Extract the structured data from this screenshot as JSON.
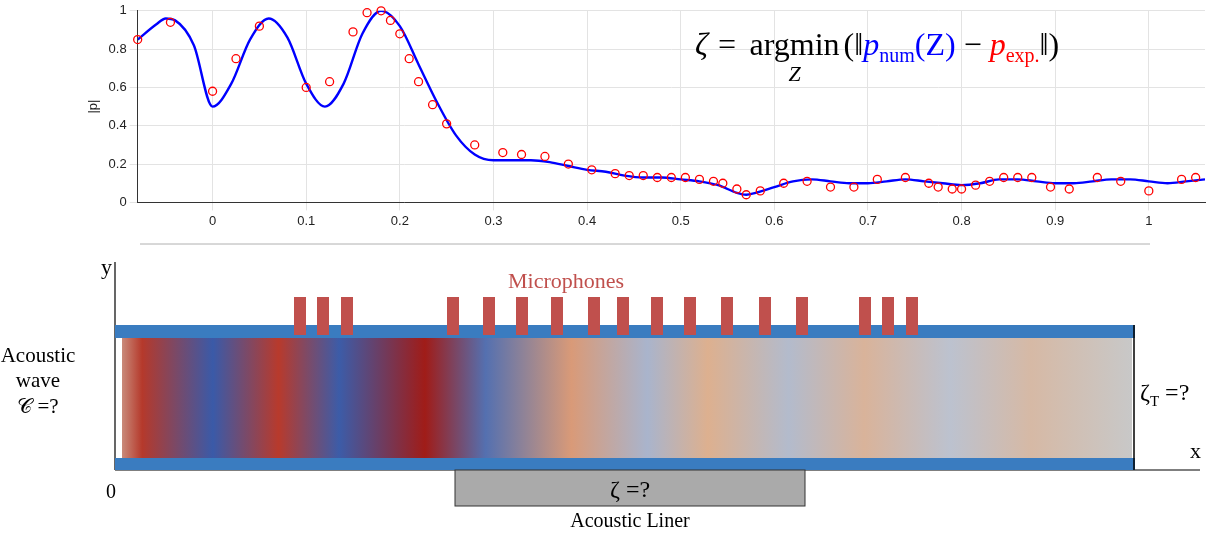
{
  "chart_data": {
    "type": "line",
    "y_label": "|p|",
    "xlim": [
      -0.08,
      1.06
    ],
    "xticks": [
      0,
      0.1,
      0.2,
      0.3,
      0.4,
      0.5,
      0.6,
      0.7,
      0.8,
      0.9,
      1
    ],
    "ylim": [
      0,
      1
    ],
    "yticks": [
      0,
      0.2,
      0.4,
      0.6,
      0.8,
      1
    ],
    "grid": true,
    "annotation": {
      "lhs": "ζ =",
      "operator": "argmin",
      "operator_sub": "Z",
      "open": "(‖",
      "term1": "p",
      "term1_sub": "num",
      "term1_arg": "(Z)",
      "minus": "−",
      "term2": "p",
      "term2_sub": "exp.",
      "close": "‖)"
    },
    "series": [
      {
        "type": "line",
        "color": "#0000ff",
        "line_style": "solid",
        "x": [
          -0.08,
          -0.06,
          -0.05,
          -0.04,
          -0.02,
          0,
          0.02,
          0.04,
          0.06,
          0.08,
          0.1,
          0.12,
          0.14,
          0.16,
          0.18,
          0.2,
          0.22,
          0.24,
          0.26,
          0.28,
          0.3,
          0.32,
          0.34,
          0.36,
          0.38,
          0.4,
          0.42,
          0.44,
          0.46,
          0.48,
          0.5,
          0.52,
          0.54,
          0.56,
          0.57,
          0.58,
          0.6,
          0.62,
          0.64,
          0.66,
          0.68,
          0.7,
          0.72,
          0.74,
          0.76,
          0.78,
          0.8,
          0.82,
          0.84,
          0.86,
          0.88,
          0.9,
          0.92,
          0.94,
          0.96,
          0.98,
          1,
          1.02,
          1.04,
          1.06
        ],
        "values": [
          0.85,
          0.93,
          0.96,
          0.95,
          0.82,
          0.5,
          0.62,
          0.85,
          0.96,
          0.86,
          0.62,
          0.5,
          0.62,
          0.88,
          1,
          0.92,
          0.72,
          0.52,
          0.35,
          0.25,
          0.22,
          0.22,
          0.22,
          0.21,
          0.19,
          0.17,
          0.16,
          0.14,
          0.13,
          0.13,
          0.12,
          0.11,
          0.09,
          0.05,
          0.04,
          0.05,
          0.08,
          0.11,
          0.12,
          0.11,
          0.1,
          0.1,
          0.11,
          0.12,
          0.11,
          0.1,
          0.09,
          0.1,
          0.12,
          0.12,
          0.11,
          0.1,
          0.1,
          0.11,
          0.12,
          0.12,
          0.11,
          0.1,
          0.11,
          0.12
        ]
      },
      {
        "type": "scatter",
        "color": "#ff0000",
        "marker": "circle",
        "x": [
          -0.08,
          -0.045,
          0,
          0.025,
          0.05,
          0.1,
          0.125,
          0.15,
          0.165,
          0.18,
          0.19,
          0.2,
          0.21,
          0.22,
          0.235,
          0.25,
          0.28,
          0.31,
          0.33,
          0.355,
          0.38,
          0.405,
          0.43,
          0.445,
          0.46,
          0.475,
          0.49,
          0.505,
          0.52,
          0.535,
          0.545,
          0.56,
          0.57,
          0.585,
          0.61,
          0.635,
          0.66,
          0.685,
          0.71,
          0.74,
          0.765,
          0.775,
          0.79,
          0.8,
          0.815,
          0.83,
          0.845,
          0.86,
          0.875,
          0.895,
          0.915,
          0.945,
          0.97,
          1,
          1.035,
          1.05
        ],
        "values": [
          0.85,
          0.94,
          0.58,
          0.75,
          0.92,
          0.6,
          0.63,
          0.89,
          0.99,
          1,
          0.95,
          0.88,
          0.75,
          0.63,
          0.51,
          0.41,
          0.3,
          0.26,
          0.25,
          0.24,
          0.2,
          0.17,
          0.15,
          0.14,
          0.14,
          0.13,
          0.13,
          0.13,
          0.12,
          0.11,
          0.1,
          0.07,
          0.04,
          0.06,
          0.1,
          0.11,
          0.08,
          0.08,
          0.12,
          0.13,
          0.1,
          0.08,
          0.07,
          0.07,
          0.09,
          0.11,
          0.13,
          0.13,
          0.13,
          0.08,
          0.07,
          0.13,
          0.11,
          0.06,
          0.12,
          0.13
        ]
      }
    ]
  },
  "diagram": {
    "axis_y": "y",
    "axis_x": "x",
    "origin": "0",
    "microphones": "Microphones",
    "source": [
      "Acoustic",
      "wave",
      "𝒞 =?"
    ],
    "liner_impedance": "ζ =?",
    "liner": "Acoustic Liner",
    "termination": {
      "symbol": "ζ",
      "sub": "T",
      "rest": " =?"
    }
  }
}
